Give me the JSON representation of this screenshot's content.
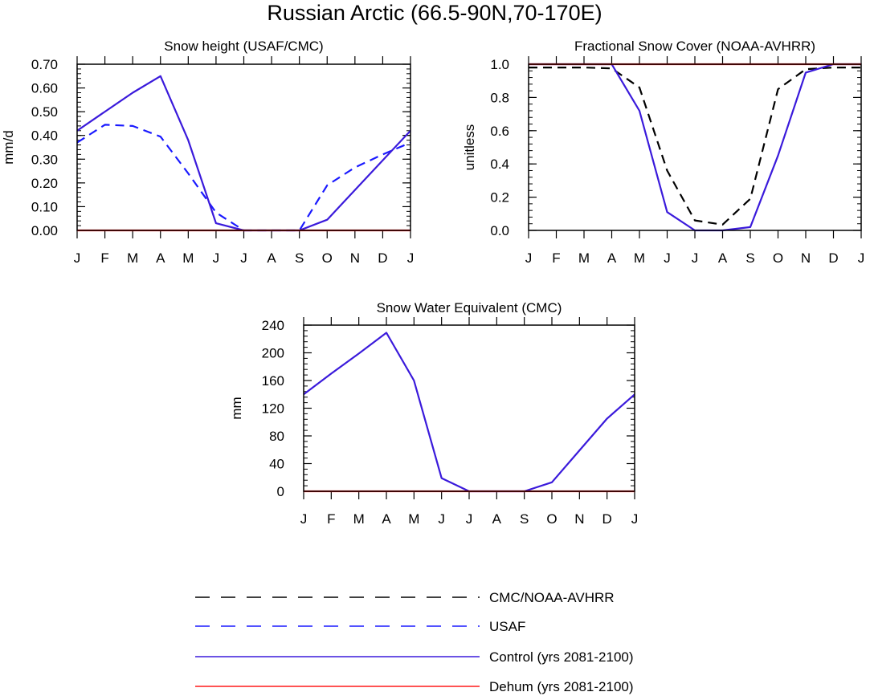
{
  "page_title": "Russian Arctic (66.5-90N,70-170E)",
  "month_labels": [
    "J",
    "F",
    "M",
    "A",
    "M",
    "J",
    "J",
    "A",
    "S",
    "O",
    "N",
    "D",
    "J"
  ],
  "colors": {
    "obs_black": "#000000",
    "usaf_blue": "#1a1aff",
    "control": "#3a1adb",
    "dehum": "#ff1a1a"
  },
  "legend": [
    {
      "label": "CMC/NOAA-AVHRR",
      "style": "dashed",
      "color": "#000000"
    },
    {
      "label": "USAF",
      "style": "dashed",
      "color": "#1a1aff"
    },
    {
      "label": "Control (yrs 2081-2100)",
      "style": "solid",
      "color": "#3a1adb"
    },
    {
      "label": "Dehum (yrs 2081-2100)",
      "style": "solid",
      "color": "#ff1a1a"
    }
  ],
  "chart_data": [
    {
      "type": "line",
      "title": "Snow height (USAF/CMC)",
      "xlabel": "",
      "ylabel": "mm/d",
      "ylim": [
        0,
        0.7
      ],
      "yticks": [
        "0.00",
        "0.10",
        "0.20",
        "0.30",
        "0.40",
        "0.50",
        "0.60",
        "0.70"
      ],
      "yticks_values": [
        0,
        0.1,
        0.2,
        0.3,
        0.4,
        0.5,
        0.6,
        0.7
      ],
      "minor_step": 0.02,
      "categories": [
        "J",
        "F",
        "M",
        "A",
        "M",
        "J",
        "J",
        "A",
        "S",
        "O",
        "N",
        "D",
        "J"
      ],
      "series": [
        {
          "name": "USAF",
          "style": "dashed",
          "color": "#1a1aff",
          "values": [
            0.37,
            0.445,
            0.44,
            0.395,
            0.24,
            0.075,
            0.0,
            0.0,
            0.0,
            0.19,
            0.265,
            0.32,
            0.37
          ]
        },
        {
          "name": "Control (yrs 2081-2100)",
          "style": "solid",
          "color": "#3a1adb",
          "values": [
            0.42,
            0.5,
            0.58,
            0.65,
            0.38,
            0.03,
            0.0,
            0.0,
            0.0,
            0.045,
            0.17,
            0.295,
            0.42
          ]
        },
        {
          "name": "Dehum (yrs 2081-2100)",
          "style": "solid",
          "color": "#ff1a1a",
          "values": [
            0,
            0,
            0,
            0,
            0,
            0,
            0,
            0,
            0,
            0,
            0,
            0,
            0
          ]
        }
      ]
    },
    {
      "type": "line",
      "title": "Fractional Snow Cover (NOAA-AVHRR)",
      "xlabel": "",
      "ylabel": "unitless",
      "ylim": [
        0,
        1.0
      ],
      "yticks": [
        "0.0",
        "0.2",
        "0.4",
        "0.6",
        "0.8",
        "1.0"
      ],
      "yticks_values": [
        0,
        0.2,
        0.4,
        0.6,
        0.8,
        1.0
      ],
      "minor_step": 0.04,
      "categories": [
        "J",
        "F",
        "M",
        "A",
        "M",
        "J",
        "J",
        "A",
        "S",
        "O",
        "N",
        "D",
        "J"
      ],
      "series": [
        {
          "name": "CMC/NOAA-AVHRR",
          "style": "dashed",
          "color": "#000000",
          "values": [
            0.98,
            0.98,
            0.98,
            0.975,
            0.86,
            0.36,
            0.06,
            0.035,
            0.19,
            0.85,
            0.97,
            0.98,
            0.98
          ]
        },
        {
          "name": "Control (yrs 2081-2100)",
          "style": "solid",
          "color": "#3a1adb",
          "values": [
            1.0,
            1.0,
            1.0,
            1.0,
            0.72,
            0.11,
            0.0,
            0.0,
            0.02,
            0.45,
            0.95,
            1.0,
            1.0
          ]
        },
        {
          "name": "Dehum (yrs 2081-2100)",
          "style": "solid",
          "color": "#ff1a1a",
          "values": [
            1.0,
            1.0,
            1.0,
            1.0,
            1.0,
            1.0,
            1.0,
            1.0,
            1.0,
            1.0,
            1.0,
            1.0,
            1.0
          ]
        }
      ]
    },
    {
      "type": "line",
      "title": "Snow Water Equivalent (CMC)",
      "xlabel": "",
      "ylabel": "mm",
      "ylim": [
        0,
        240
      ],
      "yticks": [
        "0",
        "40",
        "80",
        "120",
        "160",
        "200",
        "240"
      ],
      "yticks_values": [
        0,
        40,
        80,
        120,
        160,
        200,
        240
      ],
      "minor_step": 8,
      "categories": [
        "J",
        "F",
        "M",
        "A",
        "M",
        "J",
        "J",
        "A",
        "S",
        "O",
        "N",
        "D",
        "J"
      ],
      "series": [
        {
          "name": "Control (yrs 2081-2100)",
          "style": "solid",
          "color": "#3a1adb",
          "values": [
            140,
            170,
            199,
            229,
            160,
            19,
            0,
            0,
            0,
            13,
            59,
            105,
            140
          ]
        },
        {
          "name": "Dehum (yrs 2081-2100)",
          "style": "solid",
          "color": "#ff1a1a",
          "values": [
            0,
            0,
            0,
            0,
            0,
            0,
            0,
            0,
            0,
            0,
            0,
            0,
            0
          ]
        }
      ]
    }
  ]
}
